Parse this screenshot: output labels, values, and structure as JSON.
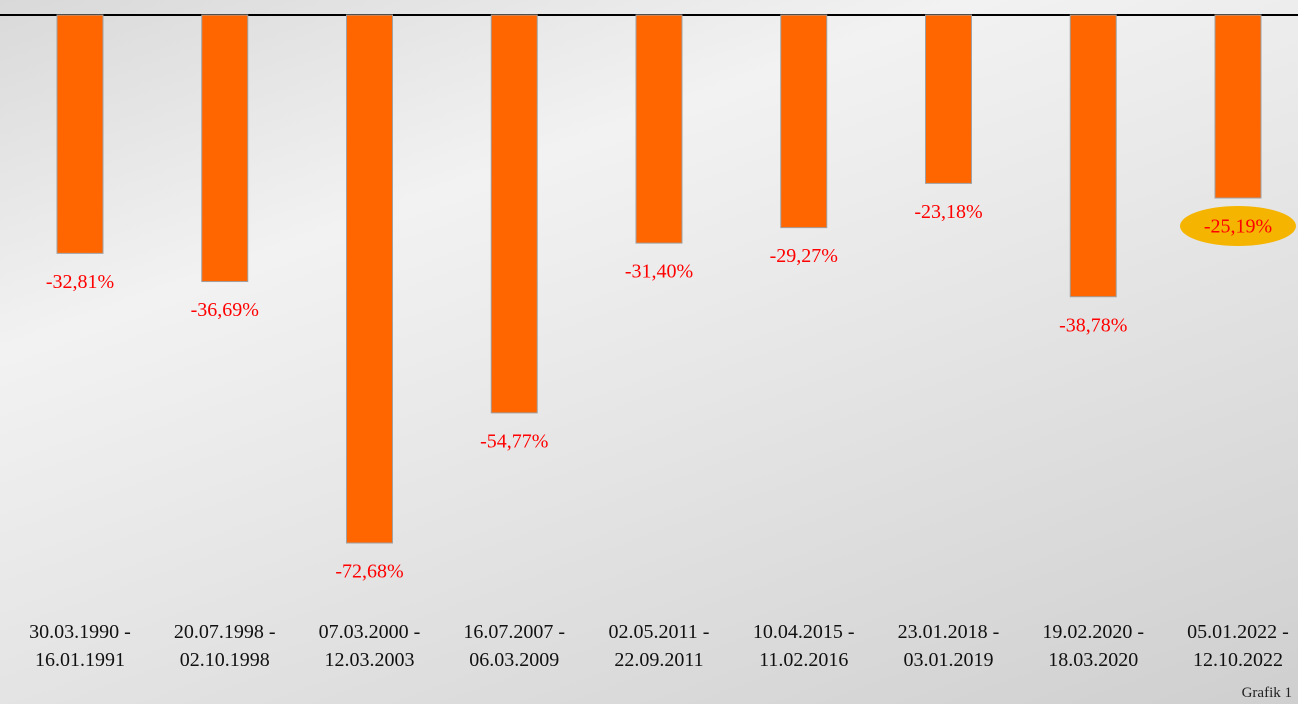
{
  "chart_data": {
    "type": "bar",
    "categories": [
      "30.03.1990 - 16.01.1991",
      "20.07.1998 - 02.10.1998",
      "07.03.2000 - 12.03.2003",
      "16.07.2007 - 06.03.2009",
      "02.05.2011 - 22.09.2011",
      "10.04.2015 - 11.02.2016",
      "23.01.2018 - 03.01.2019",
      "19.02.2020 - 18.03.2020",
      "05.01.2022 - 12.10.2022"
    ],
    "values": [
      -32.81,
      -36.69,
      -72.68,
      -54.77,
      -31.4,
      -29.27,
      -23.18,
      -38.78,
      -25.19
    ],
    "value_labels": [
      "-32,81%",
      "-36,69%",
      "-72,68%",
      "-54,77%",
      "-31,40%",
      "-29,27%",
      "-23,18%",
      "-38,78%",
      "-25,19%"
    ],
    "color": "#ff6600",
    "label_color": "#ff0000",
    "highlighted": 8,
    "highlight_color": "#f5b400",
    "note": "Grafik 1"
  }
}
